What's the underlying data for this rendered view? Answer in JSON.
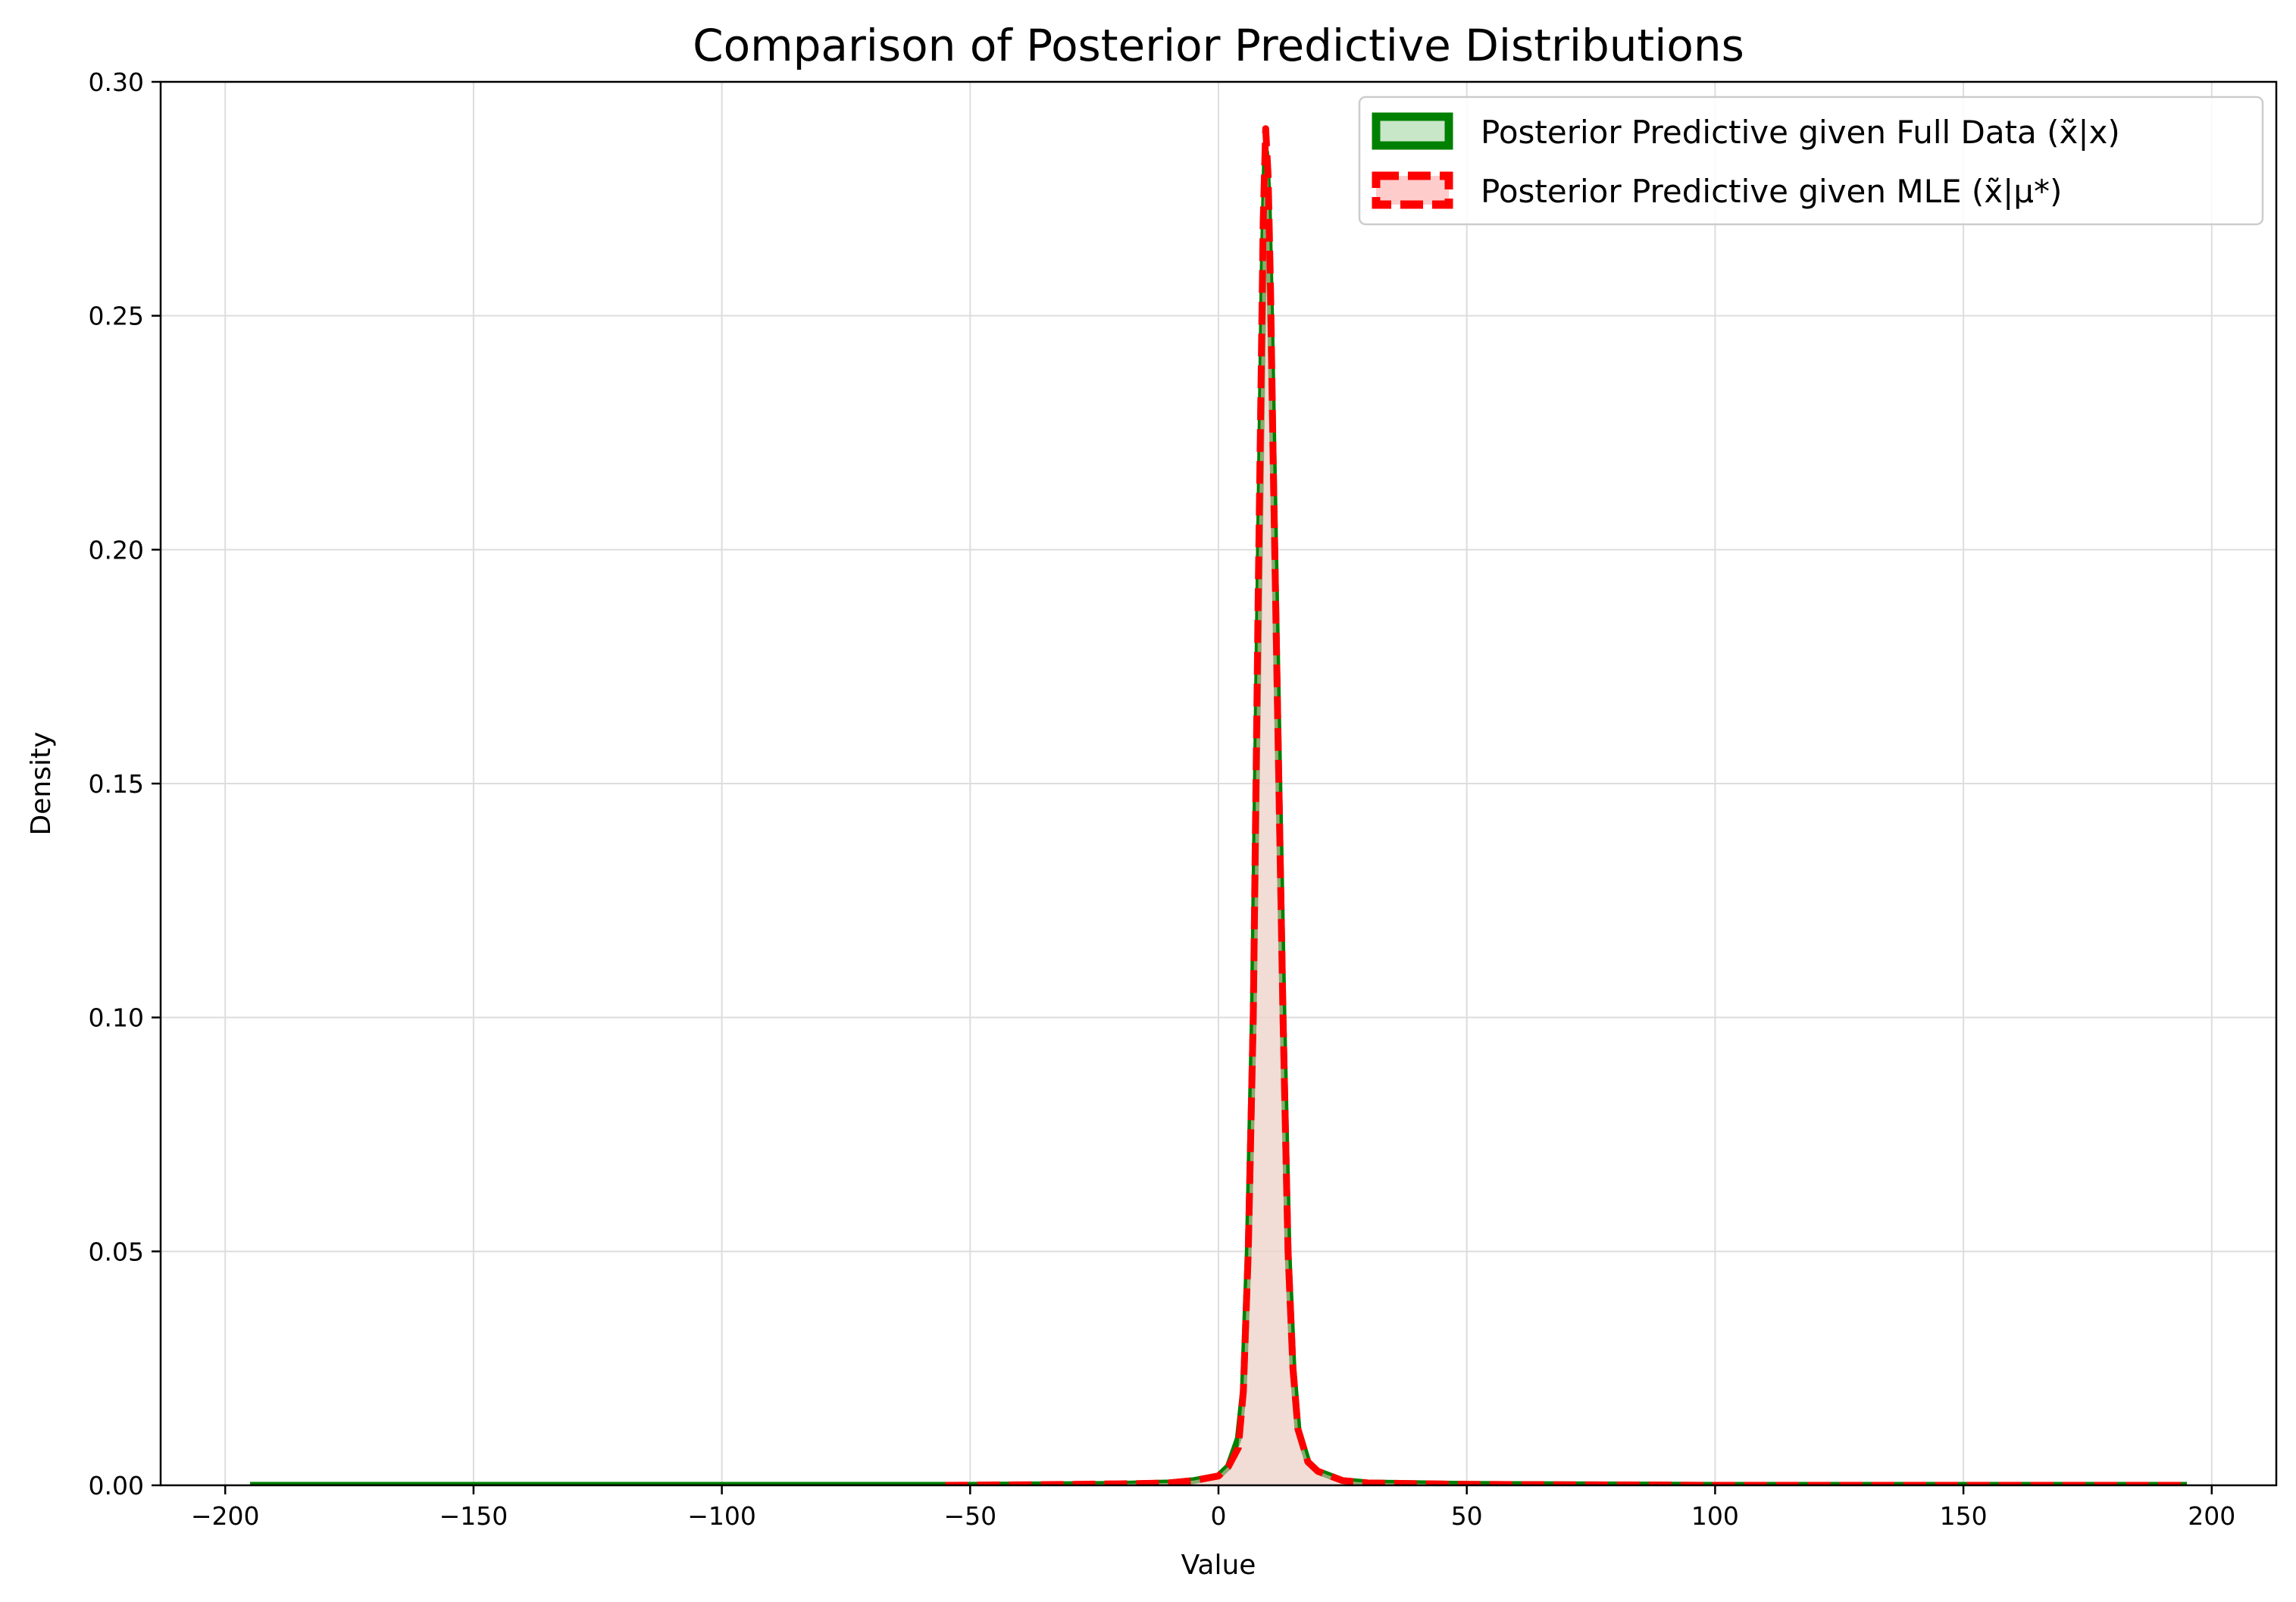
{
  "chart_data": {
    "type": "area",
    "title": "Comparison of Posterior Predictive Distributions",
    "xlabel": "Value",
    "ylabel": "Density",
    "xlim": [
      -213,
      213
    ],
    "ylim": [
      0,
      0.3
    ],
    "xticks": [
      -200,
      -150,
      -100,
      -50,
      0,
      50,
      100,
      150,
      200
    ],
    "xtick_labels": [
      "−200",
      "−150",
      "−100",
      "−50",
      "0",
      "50",
      "100",
      "150",
      "200"
    ],
    "yticks": [
      0,
      0.05,
      0.1,
      0.15,
      0.2,
      0.25,
      0.3
    ],
    "ytick_labels": [
      "0.00",
      "0.05",
      "0.10",
      "0.15",
      "0.20",
      "0.25",
      "0.30"
    ],
    "grid": true,
    "legend_position": "top-right",
    "series": [
      {
        "name": "Posterior Predictive given Full Data (x̃|x)",
        "color": "#008000",
        "fill": "#c8e6c8",
        "line_style": "solid",
        "x": [
          -195,
          -100,
          -50,
          -20,
          -10,
          -5,
          0,
          2,
          4,
          5,
          6,
          7,
          8,
          9,
          9.5,
          10,
          10.5,
          11,
          12,
          13,
          14,
          15,
          16,
          18,
          20,
          25,
          30,
          50,
          100,
          150,
          195
        ],
        "y": [
          0,
          0,
          0,
          0.0002,
          0.0005,
          0.001,
          0.002,
          0.004,
          0.01,
          0.02,
          0.05,
          0.1,
          0.18,
          0.26,
          0.285,
          0.275,
          0.25,
          0.22,
          0.16,
          0.1,
          0.05,
          0.025,
          0.012,
          0.005,
          0.003,
          0.001,
          0.0005,
          0.0002,
          0,
          0,
          0
        ]
      },
      {
        "name": "Posterior Predictive given MLE (x̃|μ*)",
        "color": "#ff0000",
        "fill": "#ffcccc",
        "line_style": "dashed",
        "x": [
          -55,
          -40,
          -20,
          -10,
          -5,
          0,
          2,
          4,
          5,
          6,
          7,
          8,
          9,
          9.5,
          10,
          10.5,
          11,
          12,
          13,
          14,
          15,
          16,
          18,
          20,
          25,
          30,
          50,
          100,
          150,
          195
        ],
        "y": [
          0,
          0.0001,
          0.0003,
          0.0005,
          0.001,
          0.002,
          0.004,
          0.008,
          0.02,
          0.05,
          0.1,
          0.19,
          0.27,
          0.29,
          0.28,
          0.255,
          0.22,
          0.16,
          0.1,
          0.05,
          0.025,
          0.012,
          0.005,
          0.003,
          0.001,
          0.0005,
          0.0002,
          0,
          0,
          0
        ]
      }
    ]
  }
}
